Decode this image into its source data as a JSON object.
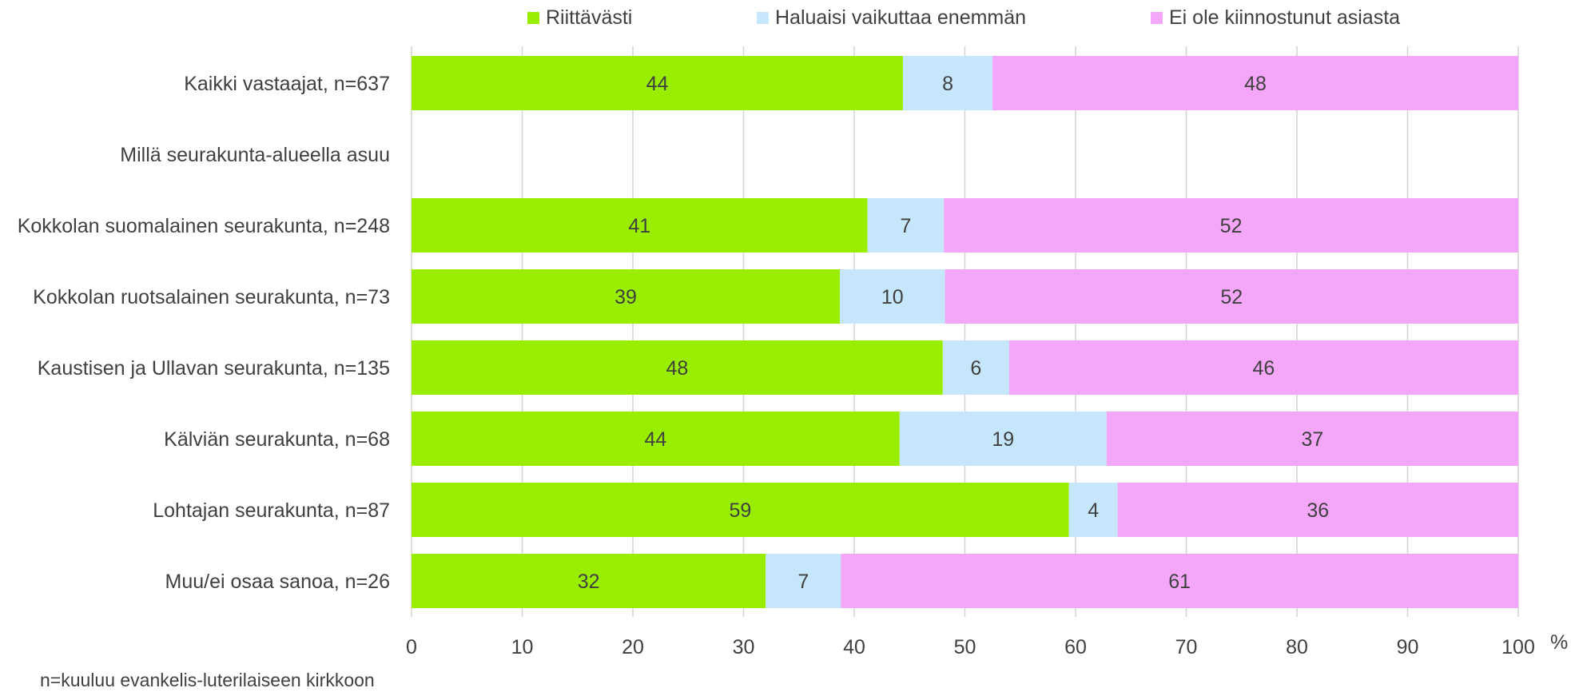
{
  "legend": {
    "items": [
      {
        "label": "Riittävästi",
        "color": "#99ee00"
      },
      {
        "label": "Haluaisi vaikuttaa enemmän",
        "color": "#c5e6fb"
      },
      {
        "label": "Ei ole kiinnostunut asiasta",
        "color": "#f4a6f8"
      }
    ]
  },
  "footnote": "n=kuuluu evankelis-luterilaiseen kirkkoon",
  "chart_data": {
    "type": "bar",
    "orientation": "horizontal",
    "stacked": true,
    "categories": [
      "Kaikki vastaajat, n=637",
      "Millä seurakunta-alueella asuu",
      "Kokkolan suomalainen seurakunta, n=248",
      "Kokkolan ruotsalainen seurakunta, n=73",
      "Kaustisen ja Ullavan seurakunta, n=135",
      "Kälviän seurakunta, n=68",
      "Lohtajan seurakunta, n=87",
      "Muu/ei osaa sanoa, n=26"
    ],
    "series": [
      {
        "name": "Riittävästi",
        "color": "#99ee00",
        "values": [
          44.4,
          null,
          41.2,
          38.7,
          48.0,
          44.1,
          59.4,
          32.0
        ],
        "labels": [
          "44",
          "",
          "41",
          "39",
          "48",
          "44",
          "59",
          "32"
        ]
      },
      {
        "name": "Haluaisi vaikuttaa enemmän",
        "color": "#c5e6fb",
        "values": [
          8.1,
          null,
          6.9,
          9.5,
          6.0,
          18.7,
          4.4,
          6.8
        ],
        "labels": [
          "8",
          "",
          "7",
          "10",
          "6",
          "19",
          "4",
          "7"
        ]
      },
      {
        "name": "Ei ole kiinnostunut asiasta",
        "color": "#f4a6f8",
        "values": [
          47.5,
          null,
          51.9,
          51.8,
          46.0,
          37.2,
          36.2,
          61.2
        ],
        "labels": [
          "48",
          "",
          "52",
          "52",
          "46",
          "37",
          "36",
          "61"
        ]
      }
    ],
    "xlim": [
      0,
      100
    ],
    "xticks": [
      "0",
      "10",
      "20",
      "30",
      "40",
      "50",
      "60",
      "70",
      "80",
      "90",
      "100"
    ],
    "xunit": "%",
    "grid": true,
    "legend_position": "top"
  }
}
